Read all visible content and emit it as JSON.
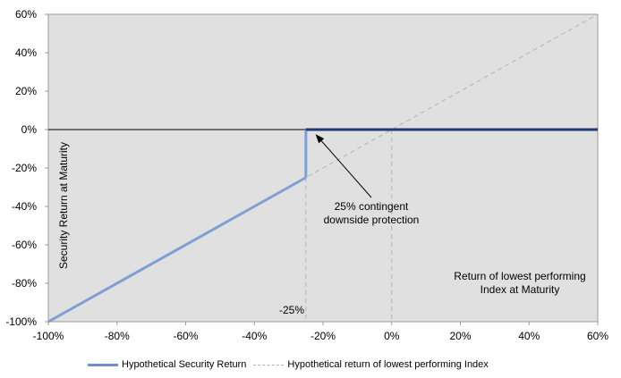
{
  "chart_data": {
    "type": "line",
    "title": "",
    "xlabel": "Return of lowest performing Index at Maturity",
    "ylabel": "Security Return at Maturity",
    "xlim": [
      -100,
      60
    ],
    "ylim": [
      -100,
      60
    ],
    "x_ticks": [
      "-100%",
      "-80%",
      "-60%",
      "-40%",
      "-20%",
      "0%",
      "20%",
      "40%",
      "60%"
    ],
    "y_ticks": [
      "60%",
      "40%",
      "20%",
      "0%",
      "-20%",
      "-40%",
      "-60%",
      "-80%",
      "-100%"
    ],
    "x_tick_values": [
      -100,
      -80,
      -60,
      -40,
      -20,
      0,
      20,
      40,
      60
    ],
    "y_tick_values": [
      60,
      40,
      20,
      0,
      -20,
      -40,
      -60,
      -80,
      -100
    ],
    "grid": false,
    "legend_position": "bottom",
    "series": [
      {
        "name": "Hypothetical Security Return",
        "style": "solid",
        "x": [
          -100,
          -25,
          -25,
          60
        ],
        "y": [
          -100,
          -25,
          0,
          0
        ],
        "color_low": "#7f9fd4",
        "color_high": "#1f3b73"
      },
      {
        "name": "Hypothetical return of lowest performing Index",
        "style": "dashed",
        "x": [
          -100,
          60
        ],
        "y": [
          -100,
          60
        ],
        "color": "#b3b3b3"
      }
    ],
    "annotations": {
      "protection_lines": [
        "25% contingent",
        "downside protection"
      ],
      "barrier_label": "-25%",
      "barrier_x": -25,
      "arrow_target": [
        -22,
        0
      ]
    },
    "colors": {
      "plot_background": "#e0e0e0",
      "zero_line": "#000000",
      "guide_line": "#b3b3b3"
    }
  }
}
